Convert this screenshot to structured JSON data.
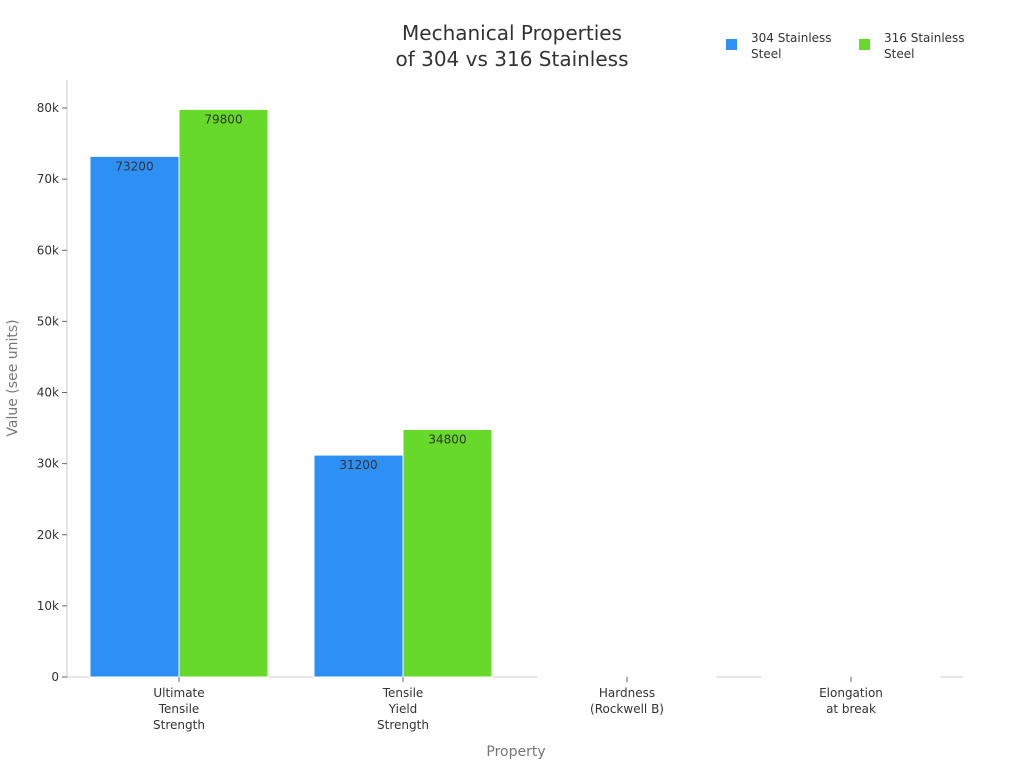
{
  "chart_data": {
    "type": "bar",
    "title": "Mechanical Properties of 304 vs 316 Stainless",
    "title_lines": [
      "Mechanical Properties",
      "of 304 vs 316 Stainless"
    ],
    "xlabel": "Property",
    "ylabel": "Value (see units)",
    "categories": [
      "Ultimate Tensile Strength",
      "Tensile Yield Strength",
      "Hardness (Rockwell B)",
      "Elongation at break"
    ],
    "category_lines": [
      [
        "Ultimate",
        "Tensile",
        "Strength"
      ],
      [
        "Tensile",
        "Yield",
        "Strength"
      ],
      [
        "Hardness",
        "(Rockwell B)"
      ],
      [
        "Elongation",
        "at break"
      ]
    ],
    "series": [
      {
        "name": "304 Stainless Steel",
        "name_lines": [
          "304 Stainless",
          "Steel"
        ],
        "color": "#2e8ff5",
        "values": [
          73200,
          31200,
          70,
          70
        ]
      },
      {
        "name": "316 Stainless Steel",
        "name_lines": [
          "316 Stainless",
          "Steel"
        ],
        "color": "#66d92a",
        "values": [
          79800,
          34800,
          79,
          50
        ]
      }
    ],
    "data_labels": [
      [
        "73200",
        "31200",
        "",
        ""
      ],
      [
        "79800",
        "34800",
        "",
        ""
      ]
    ],
    "ylim": [
      0,
      84000
    ],
    "yticks": [
      0,
      10000,
      20000,
      30000,
      40000,
      50000,
      60000,
      70000,
      80000
    ],
    "ytick_labels": [
      "0",
      "10k",
      "20k",
      "30k",
      "40k",
      "50k",
      "60k",
      "70k",
      "80k"
    ],
    "grid": false,
    "legend_position": "top-right"
  }
}
